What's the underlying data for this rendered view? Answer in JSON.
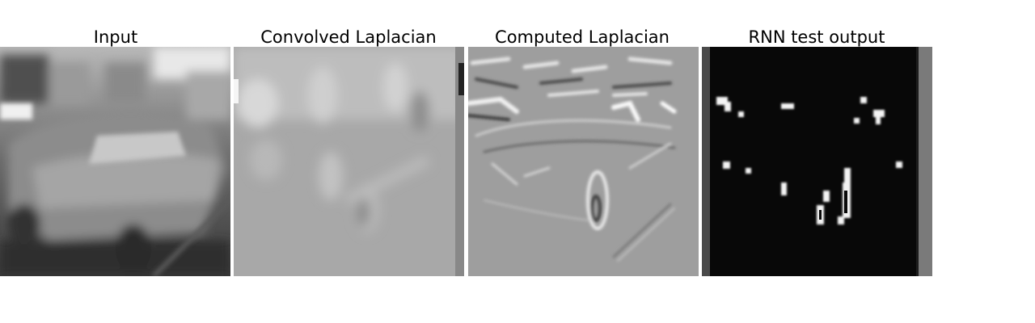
{
  "figure": {
    "panels": [
      {
        "id": "input",
        "title": "Input"
      },
      {
        "id": "convolved",
        "title": "Convolved Laplacian"
      },
      {
        "id": "computed",
        "title": "Computed Laplacian"
      },
      {
        "id": "rnn",
        "title": "RNN test output"
      }
    ]
  }
}
